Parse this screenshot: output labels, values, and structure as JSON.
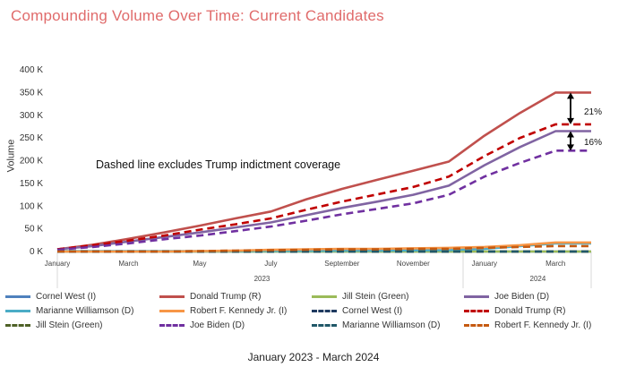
{
  "title": "Compounding Volume Over Time: Current Candidates",
  "annotation": "Dashed line excludes Trump indictment coverage",
  "pct_labels": [
    "21%",
    "16%"
  ],
  "footer": "January 2023 - March 2024",
  "chart_data": {
    "type": "line",
    "ylabel": "Volume",
    "ylim": [
      0,
      400000
    ],
    "yticks": [
      "0 K",
      "50 K",
      "100 K",
      "150 K",
      "200 K",
      "250 K",
      "300 K",
      "350 K",
      "400 K"
    ],
    "xticks": [
      "January",
      "March",
      "May",
      "July",
      "September",
      "November",
      "January",
      "March"
    ],
    "year_labels": [
      "2023",
      "2024"
    ],
    "x": [
      "2023-01",
      "2023-02",
      "2023-03",
      "2023-04",
      "2023-05",
      "2023-06",
      "2023-07",
      "2023-08",
      "2023-09",
      "2023-10",
      "2023-11",
      "2023-12",
      "2024-01",
      "2024-02",
      "2024-03",
      "2024-04"
    ],
    "series": [
      {
        "name": "Cornel West (I)",
        "color": "#4f81bd",
        "dash": false,
        "values": [
          0,
          0,
          0,
          0,
          0,
          0,
          0,
          0,
          0,
          0,
          0,
          0,
          0,
          0,
          0,
          0
        ]
      },
      {
        "name": "Donald Trump (R)",
        "color": "#c0504d",
        "dash": false,
        "values": [
          5000,
          15000,
          28000,
          42000,
          57000,
          73000,
          88000,
          115000,
          138000,
          158000,
          178000,
          198000,
          255000,
          305000,
          350000,
          350000
        ]
      },
      {
        "name": "Jill Stein (Green)",
        "color": "#9bbb59",
        "dash": false,
        "values": [
          0,
          0,
          0,
          0,
          0,
          0,
          0,
          0,
          0,
          0,
          0,
          0,
          0,
          0,
          0,
          0
        ]
      },
      {
        "name": "Joe Biden (D)",
        "color": "#8064a2",
        "dash": false,
        "values": [
          5000,
          12000,
          22000,
          32000,
          42000,
          53000,
          64000,
          80000,
          96000,
          110000,
          125000,
          145000,
          190000,
          230000,
          265000,
          265000
        ]
      },
      {
        "name": "Marianne Williamson (D)",
        "color": "#4bacc6",
        "dash": false,
        "values": [
          1000,
          1000,
          1000,
          1000,
          1000,
          1000,
          1500,
          1500,
          2000,
          2000,
          2500,
          3000,
          6000,
          12000,
          18000,
          18000
        ]
      },
      {
        "name": "Robert F. Kennedy Jr. (I)",
        "color": "#f79646",
        "dash": false,
        "values": [
          0,
          0,
          0,
          0,
          1000,
          2000,
          4000,
          5000,
          6000,
          6000,
          7000,
          8000,
          10000,
          14000,
          20000,
          20000
        ]
      },
      {
        "name": "Cornel West (I)",
        "color": "#1f3a60",
        "dash": true,
        "values": [
          0,
          0,
          0,
          0,
          0,
          0,
          0,
          0,
          0,
          0,
          0,
          0,
          0,
          0,
          0,
          0
        ]
      },
      {
        "name": "Donald Trump (R)",
        "color": "#c00000",
        "dash": true,
        "values": [
          5000,
          14000,
          24000,
          35000,
          48000,
          60000,
          73000,
          92000,
          110000,
          126000,
          142000,
          165000,
          210000,
          250000,
          280000,
          280000
        ]
      },
      {
        "name": "Jill Stein (Green)",
        "color": "#4f6228",
        "dash": true,
        "values": [
          0,
          0,
          0,
          0,
          0,
          0,
          0,
          0,
          0,
          0,
          0,
          0,
          0,
          0,
          0,
          0
        ]
      },
      {
        "name": "Joe Biden (D)",
        "color": "#7030a0",
        "dash": true,
        "values": [
          4000,
          10000,
          18000,
          27000,
          35000,
          45000,
          55000,
          68000,
          82000,
          94000,
          106000,
          125000,
          165000,
          195000,
          222000,
          222000
        ]
      },
      {
        "name": "Marianne Williamson (D)",
        "color": "#215868",
        "dash": true,
        "values": [
          0,
          0,
          0,
          0,
          0,
          0,
          0,
          0,
          0,
          0,
          0,
          0,
          0,
          0,
          0,
          0
        ]
      },
      {
        "name": "Robert F. Kennedy Jr. (I)",
        "color": "#c55a11",
        "dash": true,
        "values": [
          0,
          0,
          0,
          0,
          1000,
          2000,
          3000,
          4000,
          5000,
          5000,
          6000,
          6000,
          8000,
          10000,
          12000,
          12000
        ]
      }
    ]
  }
}
